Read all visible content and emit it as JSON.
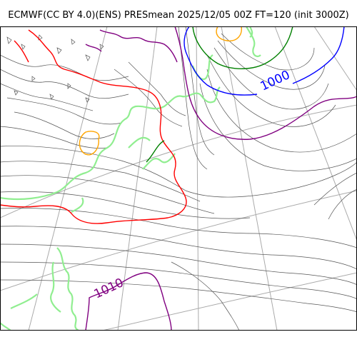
{
  "title": "ECMWF(CC BY 4.0)(ENS) PRESmean 2025/12/05 00Z FT=120 (init 3000Z)",
  "contour_labels": [
    {
      "text": "1000",
      "color": "#0000ff"
    },
    {
      "text": "1010",
      "color": "#800080"
    }
  ],
  "colors": {
    "coastline": "#90ee90",
    "isobar_thin": "#555555",
    "isobar_1000": "#0000ff",
    "isobar_1010": "#800080",
    "isobar_red": "#ff0000",
    "isobar_orange": "#ffa500",
    "isobar_green": "#008000",
    "graticule": "#aaaaaa"
  }
}
